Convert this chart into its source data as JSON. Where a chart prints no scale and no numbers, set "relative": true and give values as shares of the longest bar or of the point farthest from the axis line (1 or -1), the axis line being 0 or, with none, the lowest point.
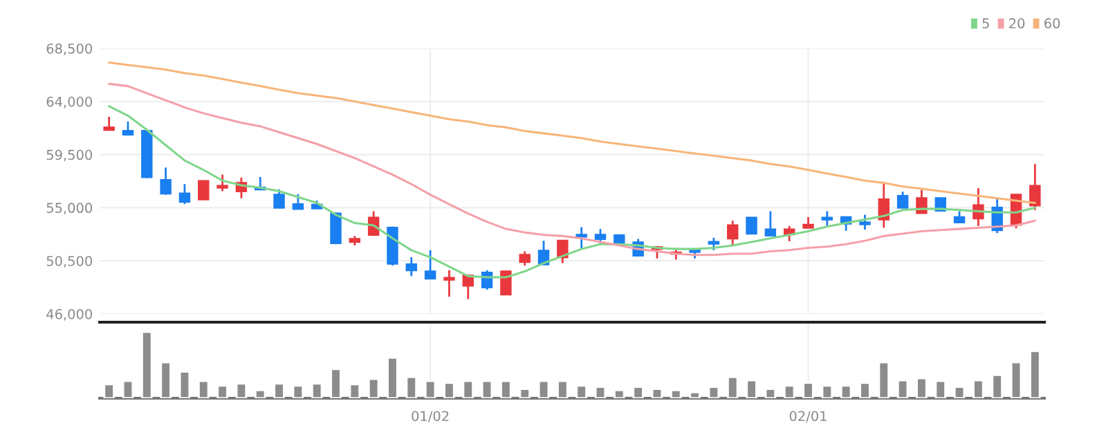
{
  "chart_data": [
    {
      "type": "candlestick",
      "categories": [
        null,
        null,
        null,
        null,
        null,
        null,
        null,
        null,
        null,
        null,
        null,
        null,
        null,
        null,
        null,
        null,
        null,
        null,
        null,
        null,
        null,
        null,
        null,
        null,
        null,
        null,
        null,
        null,
        null,
        null,
        null,
        null,
        null,
        null,
        null,
        null,
        null,
        null,
        null,
        null,
        null,
        null,
        null,
        null,
        null,
        null,
        null,
        null,
        null,
        null
      ],
      "ohlc": [
        [
          61600,
          62700,
          61600,
          61800
        ],
        [
          61500,
          62300,
          61200,
          61200
        ],
        [
          61500,
          61600,
          57500,
          57600
        ],
        [
          57350,
          58400,
          56100,
          56200
        ],
        [
          56200,
          57000,
          55300,
          55500
        ],
        [
          55700,
          57300,
          55700,
          57250
        ],
        [
          56700,
          57800,
          56400,
          56850
        ],
        [
          56400,
          57550,
          55800,
          57100
        ],
        [
          56700,
          57600,
          56550,
          56550
        ],
        [
          56100,
          56550,
          55000,
          55000
        ],
        [
          55300,
          56150,
          54850,
          54900
        ],
        [
          55250,
          55600,
          54900,
          54950
        ],
        [
          54500,
          54600,
          51900,
          52000
        ],
        [
          52100,
          52600,
          51800,
          52350
        ],
        [
          52700,
          54700,
          52600,
          54150
        ],
        [
          53300,
          53400,
          50100,
          50250
        ],
        [
          50200,
          50800,
          49200,
          49700
        ],
        [
          49600,
          51400,
          49000,
          49000
        ],
        [
          48900,
          49700,
          47450,
          49050
        ],
        [
          48400,
          49300,
          47250,
          49250
        ],
        [
          49500,
          49700,
          48050,
          48250
        ],
        [
          47650,
          49600,
          47650,
          49600
        ],
        [
          50400,
          51300,
          50100,
          51000
        ],
        [
          51350,
          52200,
          50200,
          50200
        ],
        [
          50800,
          52200,
          50300,
          52200
        ],
        [
          52700,
          53350,
          51550,
          52550
        ],
        [
          52700,
          53200,
          52000,
          52350
        ],
        [
          52650,
          52750,
          52050,
          52050
        ],
        [
          52050,
          52350,
          50950,
          50950
        ],
        [
          51500,
          51750,
          50700,
          51650
        ],
        [
          51100,
          51600,
          50600,
          51200
        ],
        [
          51450,
          51550,
          50700,
          51250
        ],
        [
          52100,
          52450,
          51400,
          51950
        ],
        [
          52400,
          53900,
          51800,
          53500
        ],
        [
          54150,
          54200,
          52800,
          52800
        ],
        [
          53150,
          54700,
          52650,
          52650
        ],
        [
          52750,
          53450,
          52150,
          53150
        ],
        [
          53300,
          54200,
          53300,
          53550
        ],
        [
          54150,
          54700,
          53450,
          54000
        ],
        [
          54200,
          54200,
          53050,
          53650
        ],
        [
          53750,
          54400,
          53150,
          53600
        ],
        [
          54000,
          57150,
          53300,
          55700
        ],
        [
          56000,
          56350,
          55000,
          55000
        ],
        [
          54550,
          56500,
          54550,
          55800
        ],
        [
          55800,
          55800,
          54750,
          54750
        ],
        [
          54200,
          54700,
          53750,
          53750
        ],
        [
          54100,
          56650,
          53450,
          55200
        ],
        [
          55000,
          55800,
          52850,
          53100
        ],
        [
          53550,
          56150,
          53250,
          56100
        ],
        [
          55200,
          58700,
          54800,
          56850
        ]
      ],
      "colors": [
        "#e8383d",
        "#1a7ff0",
        "#1a7ff0",
        "#1a7ff0",
        "#1a7ff0",
        "#e8383d",
        "#e8383d",
        "#e8383d",
        "#1a7ff0",
        "#1a7ff0",
        "#1a7ff0",
        "#1a7ff0",
        "#1a7ff0",
        "#e8383d",
        "#e8383d",
        "#1a7ff0",
        "#1a7ff0",
        "#1a7ff0",
        "#e8383d",
        "#e8383d",
        "#1a7ff0",
        "#e8383d",
        "#e8383d",
        "#1a7ff0",
        "#e8383d",
        "#1a7ff0",
        "#1a7ff0",
        "#1a7ff0",
        "#1a7ff0",
        "#e8383d",
        "#e8383d",
        "#1a7ff0",
        "#1a7ff0",
        "#e8383d",
        "#1a7ff0",
        "#1a7ff0",
        "#e8383d",
        "#e8383d",
        "#1a7ff0",
        "#1a7ff0",
        "#1a7ff0",
        "#e8383d",
        "#1a7ff0",
        "#e8383d",
        "#1a7ff0",
        "#1a7ff0",
        "#e8383d",
        "#1a7ff0",
        "#e8383d",
        "#e8383d"
      ],
      "series": [
        {
          "name": "5",
          "type": "line",
          "color": "#7fd68a",
          "values": [
            63600,
            62800,
            61600,
            60300,
            59000,
            58200,
            57300,
            56900,
            56700,
            56400,
            55900,
            55400,
            54400,
            53700,
            53500,
            52400,
            51400,
            50800,
            50000,
            49200,
            49100,
            49100,
            49600,
            50300,
            50900,
            51500,
            51900,
            51900,
            51800,
            51600,
            51500,
            51500,
            51600,
            51800,
            52100,
            52400,
            52700,
            53000,
            53400,
            53700,
            54000,
            54300,
            54800,
            54900,
            54900,
            54800,
            54700,
            54600,
            54600,
            55000
          ]
        },
        {
          "name": "20",
          "type": "line",
          "color": "#f4a0a8",
          "values": [
            65500,
            65300,
            64700,
            64100,
            63500,
            63000,
            62600,
            62200,
            61900,
            61400,
            60900,
            60400,
            59800,
            59200,
            58500,
            57800,
            57000,
            56100,
            55300,
            54500,
            53800,
            53200,
            52900,
            52700,
            52600,
            52400,
            52100,
            51800,
            51500,
            51300,
            51100,
            51000,
            51000,
            51100,
            51100,
            51300,
            51400,
            51600,
            51700,
            51900,
            52200,
            52600,
            52800,
            53000,
            53100,
            53200,
            53300,
            53400,
            53500,
            53900
          ]
        },
        {
          "name": "60",
          "type": "line",
          "color": "#f7b57a",
          "values": [
            67300,
            67100,
            66900,
            66700,
            66400,
            66200,
            65900,
            65600,
            65300,
            65000,
            64700,
            64500,
            64300,
            64000,
            63700,
            63400,
            63100,
            62800,
            62500,
            62300,
            62000,
            61800,
            61500,
            61300,
            61100,
            60900,
            60600,
            60400,
            60200,
            60000,
            59800,
            59600,
            59400,
            59200,
            59000,
            58700,
            58500,
            58200,
            57900,
            57600,
            57300,
            57100,
            56800,
            56600,
            56400,
            56200,
            56000,
            55800,
            55600,
            55400
          ]
        }
      ],
      "ylim": [
        46000,
        68500
      ],
      "yticks": [
        {
          "value": 46000,
          "label": "46,000"
        },
        {
          "value": 50500,
          "label": "50,500"
        },
        {
          "value": 55000,
          "label": "55,000"
        },
        {
          "value": 59500,
          "label": "59,500"
        },
        {
          "value": 64000,
          "label": "64,000"
        },
        {
          "value": 68500,
          "label": "68,500"
        }
      ],
      "grid": true,
      "legend": "top right",
      "tick_labels": "y"
    },
    {
      "type": "bar",
      "relative": true,
      "categories": [
        null,
        null,
        null,
        null,
        null,
        null,
        null,
        null,
        null,
        null,
        null,
        null,
        null,
        null,
        null,
        null,
        null,
        "01/02",
        null,
        null,
        null,
        null,
        null,
        null,
        null,
        null,
        null,
        null,
        null,
        null,
        null,
        null,
        null,
        null,
        null,
        null,
        null,
        "02/01",
        null,
        null,
        null,
        null,
        null,
        null,
        null,
        null,
        null,
        null,
        null,
        null
      ],
      "values": [
        0.21,
        0.26,
        1,
        0.54,
        0.4,
        0.26,
        0.19,
        0.22,
        0.12,
        0.22,
        0.19,
        0.22,
        0.44,
        0.21,
        0.29,
        0.61,
        0.32,
        0.26,
        0.23,
        0.26,
        0.26,
        0.26,
        0.14,
        0.26,
        0.26,
        0.19,
        0.17,
        0.12,
        0.17,
        0.14,
        0.12,
        0.09,
        0.17,
        0.32,
        0.27,
        0.14,
        0.19,
        0.23,
        0.19,
        0.19,
        0.23,
        0.54,
        0.27,
        0.3,
        0.26,
        0.17,
        0.27,
        0.35,
        0.54,
        0.71
      ],
      "color": "#8c8c8c",
      "grid": "x",
      "tick_labels": "x"
    }
  ]
}
